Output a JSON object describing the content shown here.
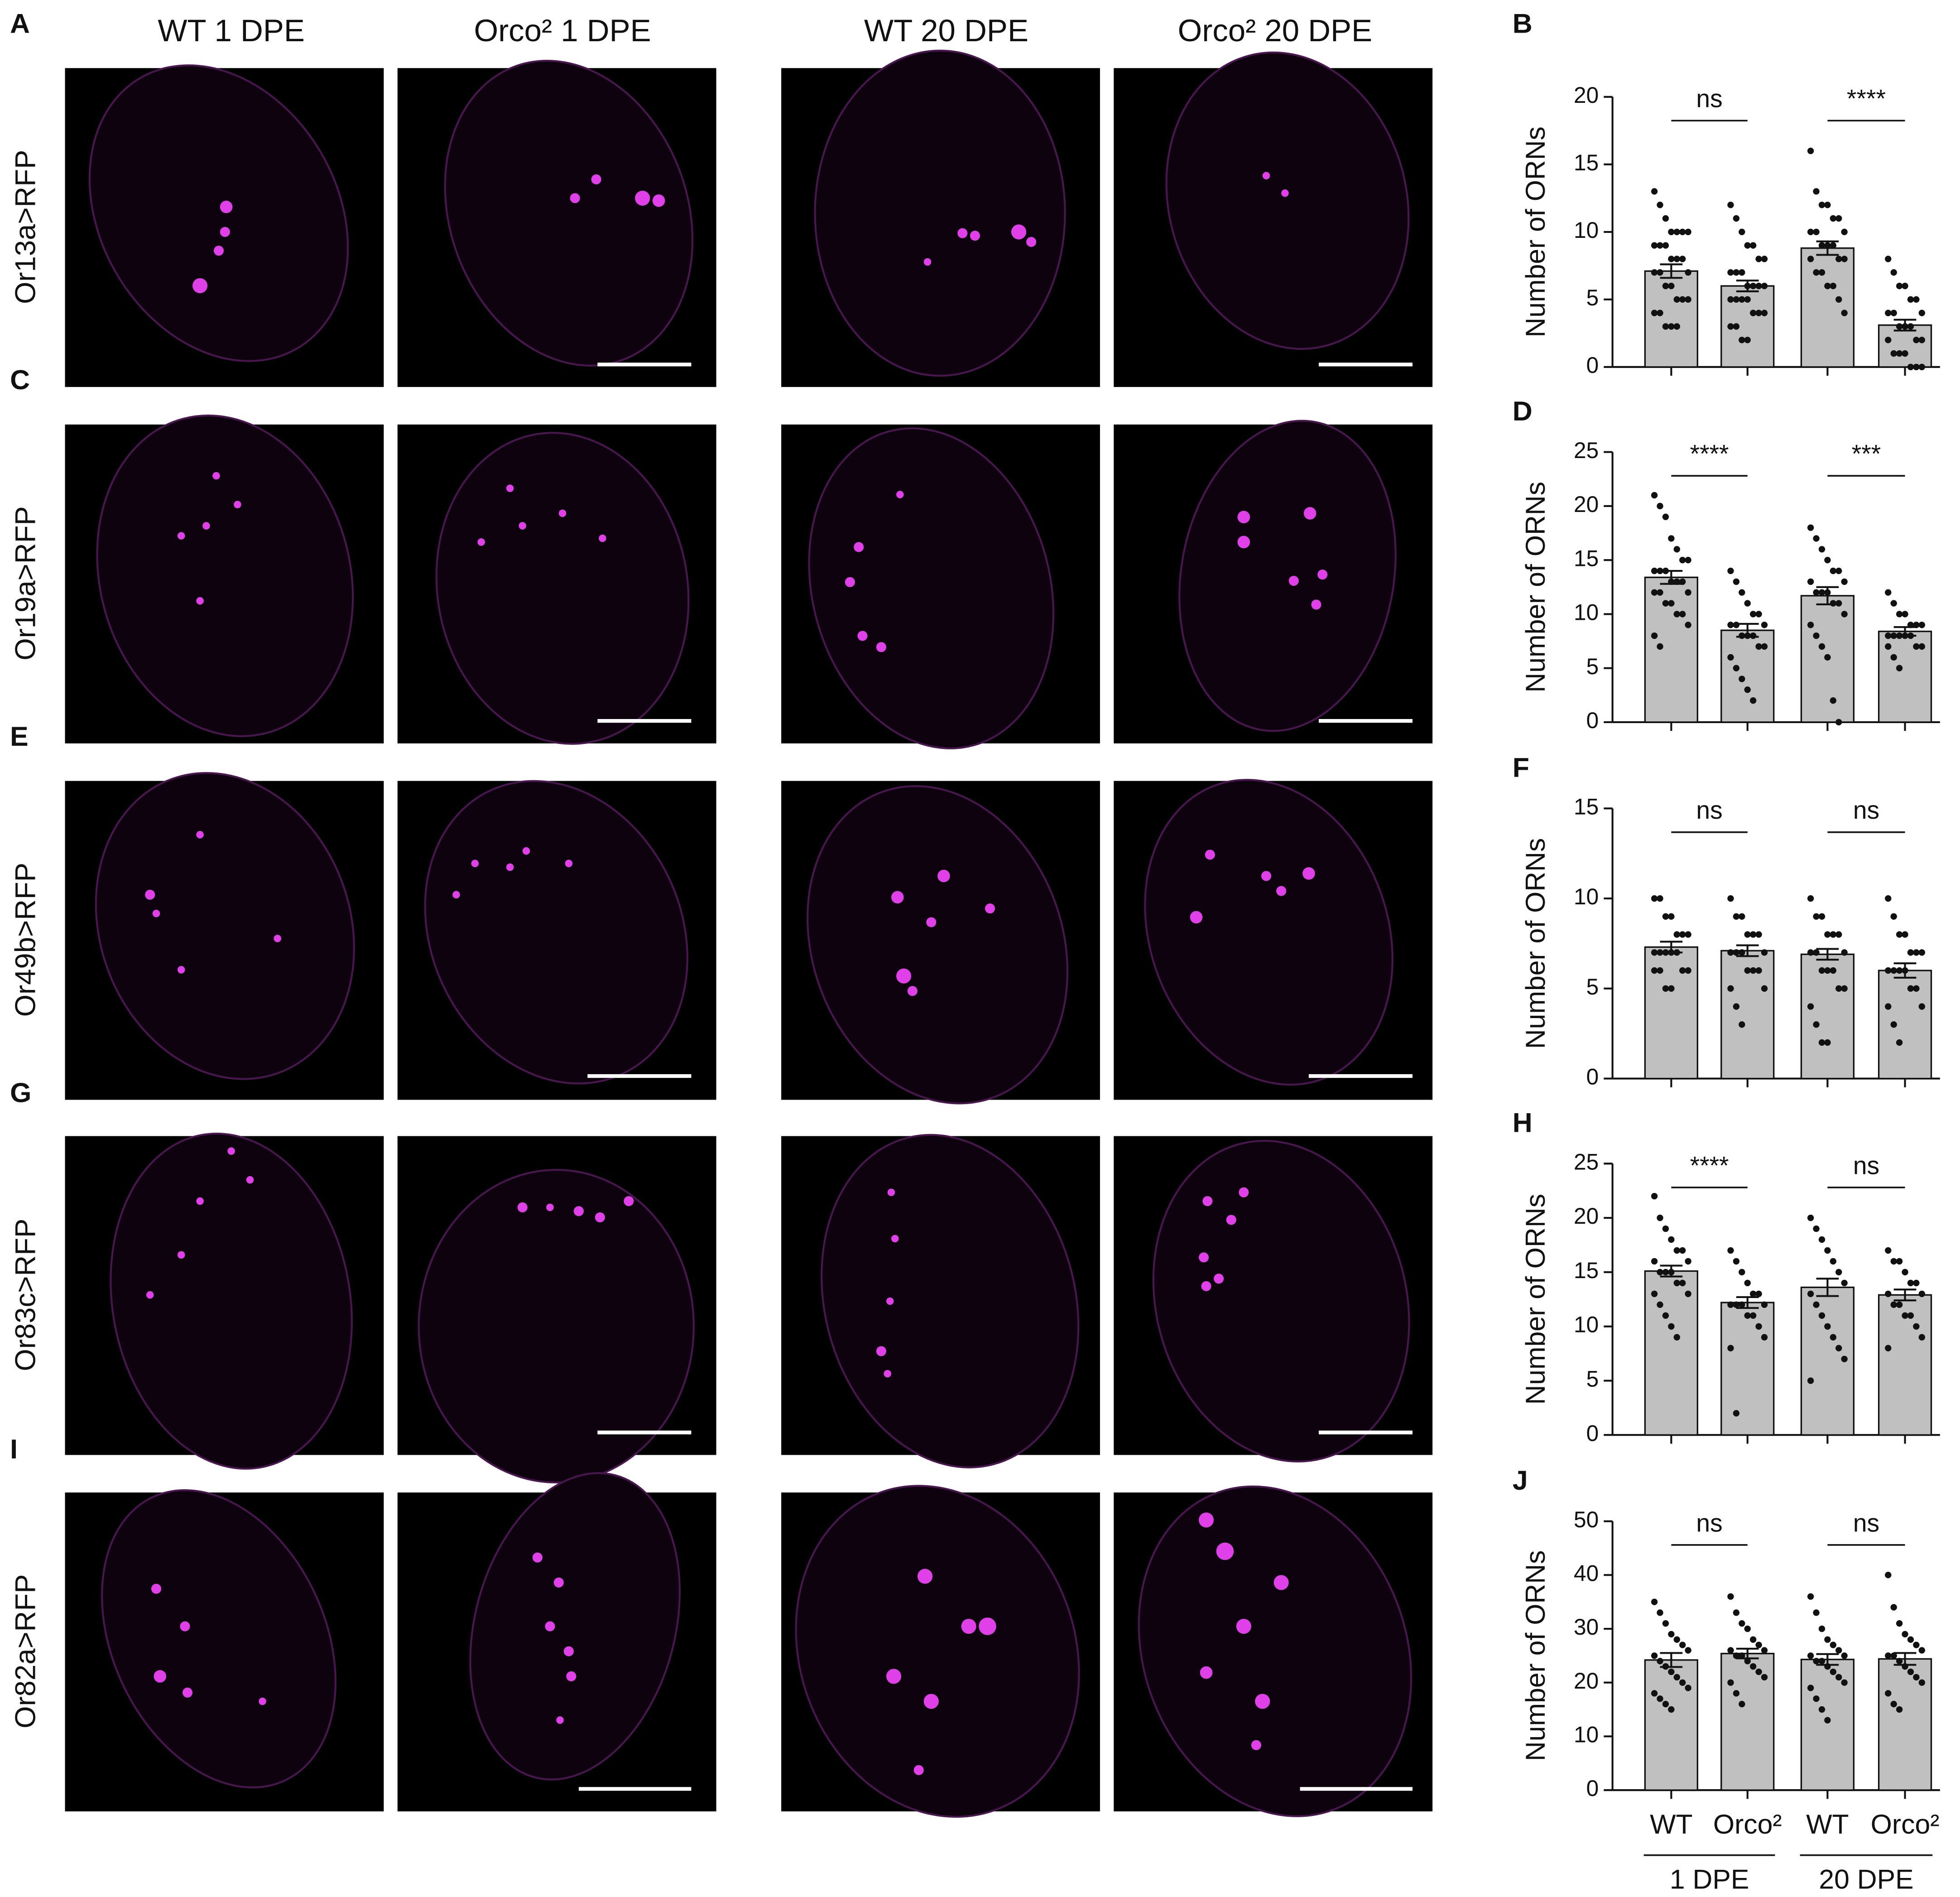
{
  "figure": {
    "column_headers": [
      "WT 1 DPE",
      "Orco² 1 DPE",
      "WT 20 DPE",
      "Orco² 20 DPE"
    ],
    "row_labels": [
      "Or13a>RFP",
      "Or19a>RFP",
      "Or49b>RFP",
      "Or83c>RFP",
      "Or82a>RFP"
    ],
    "panel_letters": [
      "A",
      "C",
      "E",
      "G",
      "I"
    ]
  },
  "chart_data": [
    {
      "type": "bar",
      "label": "B",
      "ylabel": "Number of ORNs",
      "categories": [
        null,
        null,
        null,
        null
      ],
      "color": "#c0c0c0",
      "values": [
        7.1,
        6.0,
        8.8,
        3.1
      ],
      "errors": [
        0.5,
        0.4,
        0.5,
        0.4
      ],
      "points": [
        [
          13,
          12,
          11,
          10,
          10,
          10,
          10,
          9,
          9,
          9,
          8,
          8,
          8,
          7,
          7,
          7,
          6,
          6,
          5,
          5,
          5,
          4,
          4,
          3,
          3,
          3
        ],
        [
          12,
          11,
          10,
          9,
          9,
          8,
          8,
          7,
          7,
          7,
          6,
          6,
          6,
          6,
          5,
          5,
          5,
          5,
          4,
          4,
          4,
          3,
          3,
          2,
          2
        ],
        [
          16,
          13,
          12,
          12,
          11,
          11,
          10,
          10,
          10,
          9,
          9,
          9,
          8,
          8,
          8,
          7,
          7,
          6,
          6,
          5,
          4
        ],
        [
          8,
          7,
          6,
          6,
          5,
          5,
          4,
          4,
          4,
          3,
          3,
          3,
          2,
          2,
          2,
          1,
          1,
          1,
          0,
          0,
          0
        ]
      ],
      "significance": [
        "ns",
        "****"
      ],
      "ylim": [
        0,
        20
      ],
      "yticks": [
        0,
        5,
        10,
        15,
        20
      ]
    },
    {
      "type": "bar",
      "label": "D",
      "ylabel": "Number of ORNs",
      "categories": [
        null,
        null,
        null,
        null
      ],
      "color": "#c0c0c0",
      "values": [
        13.4,
        8.5,
        11.7,
        8.4
      ],
      "errors": [
        0.6,
        0.6,
        0.8,
        0.4
      ],
      "points": [
        [
          21,
          20,
          19,
          17,
          16,
          15,
          15,
          14,
          14,
          14,
          13,
          13,
          13,
          12,
          12,
          12,
          11,
          11,
          10,
          10,
          9,
          8,
          7
        ],
        [
          14,
          13,
          12,
          11,
          10,
          10,
          9,
          9,
          9,
          8,
          8,
          8,
          7,
          7,
          6,
          5,
          4,
          3,
          2
        ],
        [
          18,
          17,
          16,
          15,
          14,
          14,
          13,
          13,
          12,
          12,
          12,
          11,
          11,
          10,
          9,
          8,
          7,
          6,
          2,
          0
        ],
        [
          12,
          11,
          10,
          10,
          9,
          9,
          9,
          8,
          8,
          8,
          8,
          8,
          7,
          7,
          7,
          6,
          5
        ]
      ],
      "significance": [
        "****",
        "***"
      ],
      "ylim": [
        0,
        25
      ],
      "yticks": [
        0,
        5,
        10,
        15,
        20,
        25
      ]
    },
    {
      "type": "bar",
      "label": "F",
      "ylabel": "Number of ORNs",
      "categories": [
        null,
        null,
        null,
        null
      ],
      "color": "#c0c0c0",
      "values": [
        7.3,
        7.1,
        6.9,
        6.0
      ],
      "errors": [
        0.3,
        0.3,
        0.3,
        0.4
      ],
      "points": [
        [
          10,
          10,
          9,
          9,
          8,
          8,
          8,
          7,
          7,
          7,
          7,
          7,
          6,
          6,
          6,
          6,
          5,
          5
        ],
        [
          10,
          9,
          9,
          8,
          8,
          8,
          7,
          7,
          7,
          7,
          6,
          6,
          6,
          5,
          5,
          4,
          3
        ],
        [
          10,
          9,
          9,
          8,
          8,
          8,
          7,
          7,
          7,
          6,
          6,
          6,
          5,
          5,
          4,
          3,
          2,
          2
        ],
        [
          10,
          9,
          8,
          8,
          7,
          7,
          7,
          6,
          6,
          6,
          6,
          5,
          5,
          4,
          4,
          3,
          2
        ]
      ],
      "significance": [
        "ns",
        "ns"
      ],
      "ylim": [
        0,
        15
      ],
      "yticks": [
        0,
        5,
        10,
        15
      ]
    },
    {
      "type": "bar",
      "label": "H",
      "ylabel": "Number of ORNs",
      "categories": [
        null,
        null,
        null,
        null
      ],
      "color": "#c0c0c0",
      "values": [
        15.1,
        12.2,
        13.6,
        12.9
      ],
      "errors": [
        0.5,
        0.5,
        0.8,
        0.5
      ],
      "points": [
        [
          22,
          20,
          19,
          18,
          17,
          17,
          16,
          16,
          15,
          15,
          15,
          14,
          14,
          13,
          13,
          12,
          11,
          10,
          9
        ],
        [
          17,
          16,
          15,
          14,
          13,
          13,
          12,
          12,
          12,
          12,
          11,
          11,
          10,
          9,
          8,
          2
        ],
        [
          20,
          19,
          18,
          17,
          16,
          15,
          14,
          13,
          12,
          11,
          10,
          9,
          8,
          7,
          5
        ],
        [
          17,
          16,
          16,
          15,
          14,
          14,
          13,
          13,
          12,
          12,
          11,
          11,
          10,
          9,
          8
        ]
      ],
      "significance": [
        "****",
        "ns"
      ],
      "ylim": [
        0,
        25
      ],
      "yticks": [
        0,
        5,
        10,
        15,
        20,
        25
      ]
    },
    {
      "type": "bar",
      "label": "J",
      "ylabel": "Number of ORNs",
      "categories": [
        "WT",
        "Orco²",
        "WT",
        "Orco²"
      ],
      "groups": [
        "1 DPE",
        "20 DPE"
      ],
      "color": "#c0c0c0",
      "values": [
        24.2,
        25.4,
        24.3,
        24.4
      ],
      "errors": [
        1.3,
        0.9,
        1.0,
        1.1
      ],
      "points": [
        [
          35,
          33,
          31,
          29,
          28,
          27,
          26,
          25,
          24,
          23,
          22,
          21,
          20,
          19,
          18,
          17,
          16,
          15
        ],
        [
          36,
          33,
          31,
          30,
          28,
          27,
          26,
          26,
          25,
          25,
          24,
          23,
          22,
          21,
          20,
          18,
          16
        ],
        [
          36,
          33,
          30,
          28,
          27,
          26,
          25,
          25,
          24,
          24,
          23,
          22,
          21,
          20,
          19,
          17,
          15,
          13
        ],
        [
          40,
          34,
          31,
          29,
          28,
          27,
          26,
          25,
          25,
          24,
          23,
          22,
          21,
          20,
          18,
          16,
          15
        ]
      ],
      "significance": [
        "ns",
        "ns"
      ],
      "ylim": [
        0,
        50
      ],
      "yticks": [
        0,
        10,
        20,
        30,
        40,
        50
      ]
    }
  ]
}
